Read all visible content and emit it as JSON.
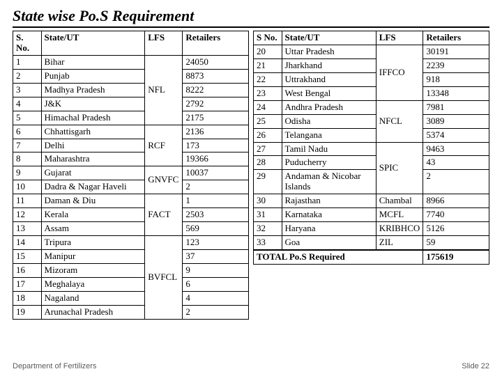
{
  "title": "State wise Po.S Requirement",
  "footer": {
    "left": "Department of Fertilizers",
    "right": "Slide 22"
  },
  "left_table": {
    "headers": [
      "S. No.",
      "State/UT",
      "LFS",
      "Retailers"
    ],
    "groups": [
      {
        "lfs": "NFL",
        "rows": [
          {
            "sn": "1",
            "state": "Bihar",
            "ret": "24050"
          },
          {
            "sn": "2",
            "state": "Punjab",
            "ret": "8873"
          },
          {
            "sn": "3",
            "state": "Madhya Pradesh",
            "ret": "8222"
          },
          {
            "sn": "4",
            "state": "J&K",
            "ret": "2792"
          },
          {
            "sn": "5",
            "state": "Himachal Pradesh",
            "ret": "2175"
          }
        ]
      },
      {
        "lfs": "RCF",
        "rows": [
          {
            "sn": "6",
            "state": "Chhattisgarh",
            "ret": "2136"
          },
          {
            "sn": "7",
            "state": "Delhi",
            "ret": "173"
          },
          {
            "sn": "8",
            "state": "Maharashtra",
            "ret": "19366"
          }
        ]
      },
      {
        "lfs": "GNVFC",
        "rows": [
          {
            "sn": "9",
            "state": "Gujarat",
            "ret": "10037"
          },
          {
            "sn": "10",
            "state": "Dadra & Nagar Haveli",
            "ret": "2"
          }
        ]
      },
      {
        "lfs": "FACT",
        "rows": [
          {
            "sn": "11",
            "state": "Daman & Diu",
            "ret": "1"
          },
          {
            "sn": "12",
            "state": "Kerala",
            "ret": "2503"
          },
          {
            "sn": "13",
            "state": "Assam",
            "ret": "569"
          }
        ]
      },
      {
        "lfs": "BVFCL",
        "rows": [
          {
            "sn": "14",
            "state": "Tripura",
            "ret": "123"
          },
          {
            "sn": "15",
            "state": "Manipur",
            "ret": "37"
          },
          {
            "sn": "16",
            "state": "Mizoram",
            "ret": "9"
          },
          {
            "sn": "17",
            "state": "Meghalaya",
            "ret": "6"
          },
          {
            "sn": "18",
            "state": "Nagaland",
            "ret": "4"
          },
          {
            "sn": "19",
            "state": "Arunachal Pradesh",
            "ret": "2"
          }
        ]
      }
    ]
  },
  "right_table": {
    "headers": [
      "S No.",
      "State/UT",
      "LFS",
      "Retailers"
    ],
    "groups": [
      {
        "lfs": "IFFCO",
        "rows": [
          {
            "sn": "20",
            "state": "Uttar Pradesh",
            "ret": "30191"
          },
          {
            "sn": "21",
            "state": "Jharkhand",
            "ret": "2239"
          },
          {
            "sn": "22",
            "state": "Uttrakhand",
            "ret": "918"
          },
          {
            "sn": "23",
            "state": "West Bengal",
            "ret": "13348"
          }
        ]
      },
      {
        "lfs": "NFCL",
        "rows": [
          {
            "sn": "24",
            "state": "Andhra Pradesh",
            "ret": "7981"
          },
          {
            "sn": "25",
            "state": "Odisha",
            "ret": "3089"
          },
          {
            "sn": "26",
            "state": "Telangana",
            "ret": "5374"
          }
        ]
      },
      {
        "lfs": "SPIC",
        "rows": [
          {
            "sn": "27",
            "state": "Tamil Nadu",
            "ret": "9463"
          },
          {
            "sn": "28",
            "state": "Puducherry",
            "ret": "43"
          },
          {
            "sn": "29",
            "state": "Andaman & Nicobar Islands",
            "ret": "2"
          }
        ]
      },
      {
        "lfs": "Chambal",
        "rows": [
          {
            "sn": "30",
            "state": "Rajasthan",
            "ret": "8966"
          }
        ]
      },
      {
        "lfs": "MCFL",
        "rows": [
          {
            "sn": "31",
            "state": "Karnataka",
            "ret": "7740"
          }
        ]
      },
      {
        "lfs": "KRIBHCO",
        "rows": [
          {
            "sn": "32",
            "state": "Haryana",
            "ret": "5126"
          }
        ]
      },
      {
        "lfs": "ZIL",
        "rows": [
          {
            "sn": "33",
            "state": "Goa",
            "ret": "59"
          }
        ]
      }
    ],
    "total": {
      "label": "TOTAL Po.S Required",
      "value": "175619"
    }
  },
  "col_widths_left": [
    "12%",
    "44%",
    "16%",
    "28%"
  ],
  "col_widths_right": [
    "12%",
    "40%",
    "20%",
    "28%"
  ],
  "colors": {
    "border": "#000000",
    "text": "#000000",
    "footer": "#5a5a5a",
    "accent": "#b30808",
    "bg": "#ffffff"
  }
}
